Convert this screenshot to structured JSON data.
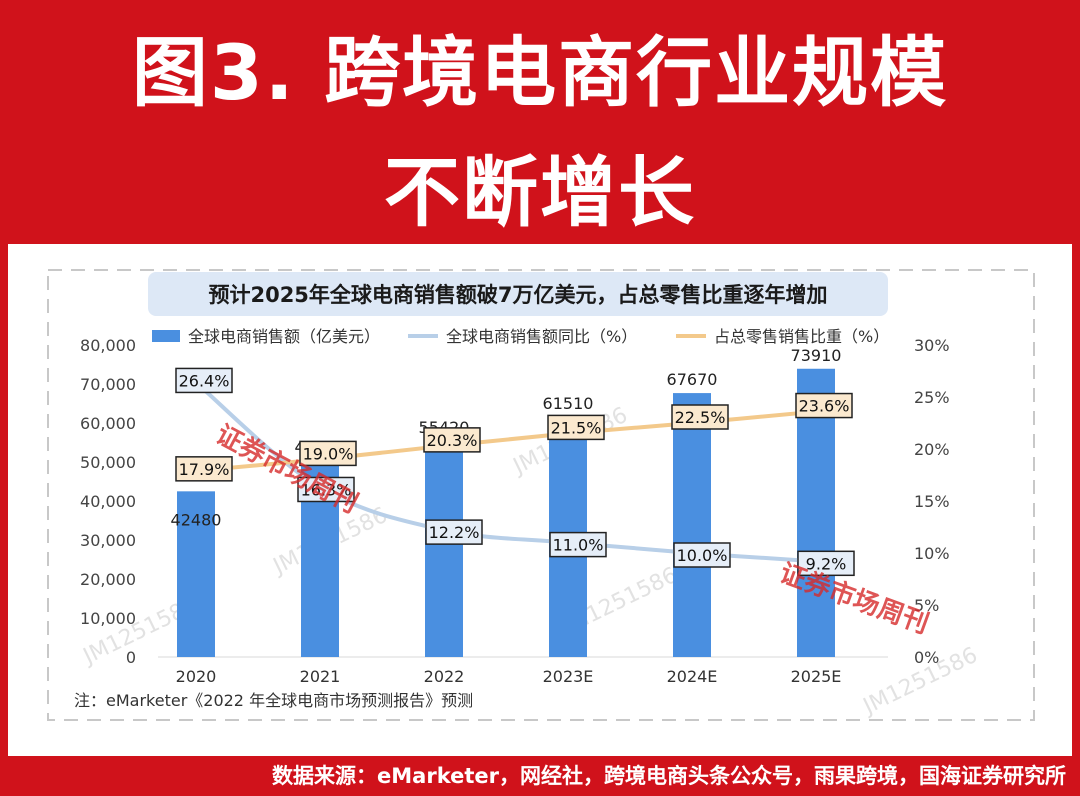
{
  "header": {
    "title_line1": "图3. 跨境电商行业规模",
    "title_line2": "不断增长"
  },
  "chart_header": "预计2025年全球电商销售额破7万亿美元，占总零售比重逐年增加",
  "note": "注：eMarketer《2022 年全球电商市场预测报告》预测",
  "watermark_text": "JM1251586",
  "stamp_text": "证券市场周刊",
  "footer_source": "数据来源：eMarketer，网经社，跨境电商头条公众号，雨果跨境，国海证券研究所",
  "colors": {
    "brand_red": "#d0121b",
    "bar": "#4a8fe0",
    "growth_line": "#b8cfe8",
    "share_line": "#f3c98b"
  },
  "chart_data": {
    "type": "bar",
    "categories": [
      "2020",
      "2021",
      "2022",
      "2023E",
      "2024E",
      "2025E"
    ],
    "series": [
      {
        "name": "全球电商销售额（亿美元）",
        "type": "bar",
        "axis": "left",
        "values": [
          42480,
          49380,
          55420,
          61510,
          67670,
          73910
        ],
        "labels": [
          "42480",
          "49380",
          "55420",
          "61510",
          "67670",
          "73910"
        ]
      },
      {
        "name": "全球电商销售额同比（%）",
        "type": "line",
        "axis": "right",
        "values": [
          26.4,
          16.3,
          12.2,
          11.0,
          10.0,
          9.2
        ],
        "labels": [
          "26.4%",
          "16.3%",
          "12.2%",
          "11.0%",
          "10.0%",
          "9.2%"
        ]
      },
      {
        "name": "占总零售销售比重（%）",
        "type": "line",
        "axis": "right",
        "values": [
          17.9,
          19.0,
          20.3,
          21.5,
          22.5,
          23.6
        ],
        "labels": [
          "17.9%",
          "19.0%",
          "20.3%",
          "21.5%",
          "22.5%",
          "23.6%"
        ]
      }
    ],
    "y_left": {
      "min": 0,
      "max": 80000,
      "ticks": [
        "0",
        "10,000",
        "20,000",
        "30,000",
        "40,000",
        "50,000",
        "60,000",
        "70,000",
        "80,000"
      ]
    },
    "y_right": {
      "min": 0,
      "max": 30,
      "ticks": [
        "0%",
        "5%",
        "10%",
        "15%",
        "20%",
        "25%",
        "30%"
      ]
    },
    "legend_position": "top",
    "grid": false
  }
}
